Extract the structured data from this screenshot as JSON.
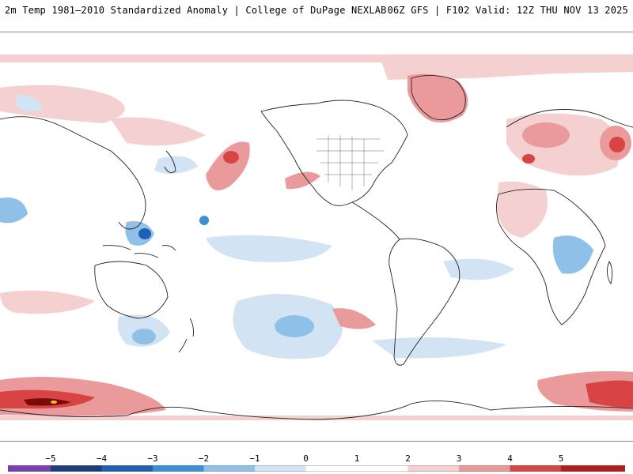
{
  "header": {
    "title_left": "2m Temp 1981–2010 Standardized Anomaly | College of DuPage NEXLAB",
    "title_right": "06Z GFS | F102 Valid: 12Z THU NOV 13 2025"
  },
  "map": {
    "variable": "2m temperature standardized anomaly",
    "model": "GFS",
    "features": [
      "continent-outlines",
      "country-borders",
      "us-state-borders",
      "anomaly-fill"
    ]
  },
  "legend": {
    "ticks": [
      {
        "label": "−5",
        "value": -5
      },
      {
        "label": "−4",
        "value": -4
      },
      {
        "label": "−3",
        "value": -3
      },
      {
        "label": "−2",
        "value": -2
      },
      {
        "label": "−1",
        "value": -1
      },
      {
        "label": "0",
        "value": 0
      },
      {
        "label": "1",
        "value": 1
      },
      {
        "label": "2",
        "value": 2
      },
      {
        "label": "3",
        "value": 3
      },
      {
        "label": "4",
        "value": 4
      },
      {
        "label": "5",
        "value": 5
      }
    ],
    "colors": [
      "#7a3fb0",
      "#1d3c7e",
      "#1f5fb5",
      "#3b8fd6",
      "#8fc0e8",
      "#d2e4f4",
      "#ffffff",
      "#ffffff",
      "#f5d0d0",
      "#ea9a9a",
      "#d84444",
      "#b51c1c",
      "#7a0a0a",
      "#f4c12a"
    ]
  }
}
